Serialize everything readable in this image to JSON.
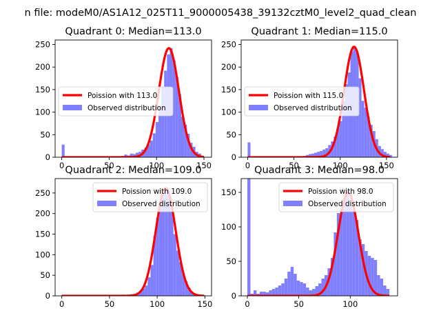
{
  "figure": {
    "suptitle": "n file: modeM0/AS1A12_025T11_9000005438_39132cztM0_level2_quad_clean"
  },
  "colors": {
    "hist": "#8080ff",
    "poisson": "#ff0000",
    "axes": "#000000"
  },
  "chart_data": [
    {
      "type": "bar",
      "title": "Quadrant 0: Median=113.0",
      "median": 113.0,
      "xlim": [
        -7,
        158
      ],
      "ylim": [
        0,
        260
      ],
      "xticks": [
        0,
        50,
        100,
        150
      ],
      "yticks": [
        0,
        50,
        100,
        150,
        200,
        250
      ],
      "legend_loc": "center-left",
      "legend": [
        "Poission with 113.0",
        "Observed distribution"
      ],
      "hist": {
        "bin_width": 3,
        "bins": [
          [
            0,
            28
          ],
          [
            3,
            2
          ],
          [
            6,
            2
          ],
          [
            9,
            2
          ],
          [
            12,
            2
          ],
          [
            15,
            2
          ],
          [
            18,
            2
          ],
          [
            21,
            2
          ],
          [
            24,
            2
          ],
          [
            27,
            2
          ],
          [
            30,
            2
          ],
          [
            33,
            2
          ],
          [
            36,
            2
          ],
          [
            39,
            2
          ],
          [
            42,
            2
          ],
          [
            45,
            2
          ],
          [
            48,
            2
          ],
          [
            51,
            2
          ],
          [
            54,
            2
          ],
          [
            57,
            2
          ],
          [
            60,
            2
          ],
          [
            63,
            3
          ],
          [
            66,
            6
          ],
          [
            69,
            4
          ],
          [
            72,
            8
          ],
          [
            75,
            7
          ],
          [
            78,
            10
          ],
          [
            81,
            12
          ],
          [
            84,
            17
          ],
          [
            87,
            21
          ],
          [
            90,
            28
          ],
          [
            93,
            37
          ],
          [
            96,
            53
          ],
          [
            99,
            78
          ],
          [
            102,
            110
          ],
          [
            105,
            155
          ],
          [
            108,
            192
          ],
          [
            111,
            228
          ],
          [
            114,
            242
          ],
          [
            117,
            215
          ],
          [
            120,
            178
          ],
          [
            123,
            140
          ],
          [
            126,
            90
          ],
          [
            129,
            72
          ],
          [
            132,
            52
          ],
          [
            135,
            32
          ],
          [
            138,
            23
          ],
          [
            141,
            12
          ],
          [
            144,
            8
          ],
          [
            147,
            3
          ]
        ]
      },
      "poisson": {
        "lambda": 113.0,
        "scale": 242
      }
    },
    {
      "type": "bar",
      "title": "Quadrant 1: Median=115.0",
      "median": 115.0,
      "xlim": [
        -7,
        162
      ],
      "ylim": [
        0,
        260
      ],
      "xticks": [
        0,
        50,
        100,
        150
      ],
      "yticks": [
        0,
        50,
        100,
        150,
        200,
        250
      ],
      "legend_loc": "center-left",
      "legend": [
        "Poission with 115.0",
        "Observed distribution"
      ],
      "hist": {
        "bin_width": 3,
        "bins": [
          [
            0,
            33
          ],
          [
            3,
            2
          ],
          [
            6,
            2
          ],
          [
            9,
            2
          ],
          [
            12,
            2
          ],
          [
            15,
            2
          ],
          [
            18,
            2
          ],
          [
            21,
            2
          ],
          [
            24,
            2
          ],
          [
            27,
            2
          ],
          [
            30,
            2
          ],
          [
            33,
            2
          ],
          [
            36,
            2
          ],
          [
            39,
            2
          ],
          [
            42,
            2
          ],
          [
            45,
            2
          ],
          [
            48,
            2
          ],
          [
            51,
            2
          ],
          [
            54,
            2
          ],
          [
            57,
            2
          ],
          [
            60,
            3
          ],
          [
            63,
            5
          ],
          [
            66,
            7
          ],
          [
            69,
            8
          ],
          [
            72,
            10
          ],
          [
            75,
            12
          ],
          [
            78,
            14
          ],
          [
            81,
            17
          ],
          [
            84,
            20
          ],
          [
            87,
            27
          ],
          [
            90,
            35
          ],
          [
            93,
            46
          ],
          [
            96,
            65
          ],
          [
            99,
            80
          ],
          [
            102,
            125
          ],
          [
            105,
            162
          ],
          [
            108,
            188
          ],
          [
            111,
            235
          ],
          [
            114,
            245
          ],
          [
            117,
            232
          ],
          [
            120,
            175
          ],
          [
            123,
            125
          ],
          [
            126,
            110
          ],
          [
            129,
            90
          ],
          [
            132,
            72
          ],
          [
            135,
            58
          ],
          [
            138,
            40
          ],
          [
            141,
            25
          ],
          [
            144,
            18
          ],
          [
            147,
            12
          ],
          [
            150,
            8
          ],
          [
            153,
            5
          ]
        ]
      },
      "poisson": {
        "lambda": 115.0,
        "scale": 245
      }
    },
    {
      "type": "bar",
      "title": "Quadrant 2: Median=109.0",
      "median": 109.0,
      "xlim": [
        -7,
        157
      ],
      "ylim": [
        0,
        285
      ],
      "xticks": [
        0,
        50,
        100,
        150
      ],
      "yticks": [
        0,
        50,
        100,
        150,
        200,
        250
      ],
      "legend_loc": "upper-right",
      "legend": [
        "Poission with 109.0",
        "Observed distribution"
      ],
      "hist": {
        "bin_width": 3,
        "bins": [
          [
            0,
            2
          ],
          [
            3,
            2
          ],
          [
            6,
            2
          ],
          [
            9,
            2
          ],
          [
            12,
            2
          ],
          [
            15,
            2
          ],
          [
            18,
            2
          ],
          [
            21,
            2
          ],
          [
            24,
            2
          ],
          [
            27,
            2
          ],
          [
            30,
            2
          ],
          [
            33,
            2
          ],
          [
            36,
            2
          ],
          [
            39,
            2
          ],
          [
            42,
            2
          ],
          [
            45,
            2
          ],
          [
            48,
            2
          ],
          [
            51,
            2
          ],
          [
            54,
            2
          ],
          [
            57,
            2
          ],
          [
            60,
            2
          ],
          [
            63,
            3
          ],
          [
            66,
            2
          ],
          [
            69,
            3
          ],
          [
            72,
            4
          ],
          [
            75,
            5
          ],
          [
            78,
            8
          ],
          [
            81,
            12
          ],
          [
            84,
            18
          ],
          [
            87,
            25
          ],
          [
            90,
            45
          ],
          [
            93,
            75
          ],
          [
            96,
            145
          ],
          [
            99,
            190
          ],
          [
            102,
            215
          ],
          [
            105,
            255
          ],
          [
            108,
            262
          ],
          [
            111,
            248
          ],
          [
            114,
            205
          ],
          [
            117,
            150
          ],
          [
            120,
            110
          ],
          [
            123,
            82
          ],
          [
            126,
            55
          ],
          [
            129,
            35
          ],
          [
            132,
            20
          ],
          [
            135,
            10
          ],
          [
            138,
            6
          ],
          [
            141,
            3
          ],
          [
            144,
            2
          ],
          [
            147,
            2
          ]
        ]
      },
      "poisson": {
        "lambda": 109.0,
        "scale": 262
      }
    },
    {
      "type": "bar",
      "title": "Quadrant 3: Median=98.0",
      "median": 98.0,
      "xlim": [
        -6,
        146
      ],
      "ylim": [
        0,
        170
      ],
      "xticks": [
        0,
        50,
        100
      ],
      "yticks": [
        0,
        50,
        100,
        150
      ],
      "legend_loc": "upper-right",
      "legend": [
        "Poission with 98.0",
        "Observed distribution"
      ],
      "hist": {
        "bin_width": 3,
        "bins": [
          [
            0,
            170
          ],
          [
            3,
            3
          ],
          [
            6,
            8
          ],
          [
            9,
            3
          ],
          [
            12,
            6
          ],
          [
            15,
            6
          ],
          [
            18,
            5
          ],
          [
            21,
            8
          ],
          [
            24,
            10
          ],
          [
            27,
            12
          ],
          [
            30,
            15
          ],
          [
            33,
            18
          ],
          [
            36,
            25
          ],
          [
            39,
            35
          ],
          [
            42,
            42
          ],
          [
            45,
            32
          ],
          [
            48,
            22
          ],
          [
            51,
            20
          ],
          [
            54,
            18
          ],
          [
            57,
            12
          ],
          [
            60,
            8
          ],
          [
            63,
            10
          ],
          [
            66,
            14
          ],
          [
            69,
            18
          ],
          [
            72,
            25
          ],
          [
            75,
            30
          ],
          [
            78,
            40
          ],
          [
            81,
            55
          ],
          [
            84,
            92
          ],
          [
            87,
            120
          ],
          [
            90,
            128
          ],
          [
            93,
            140
          ],
          [
            96,
            150
          ],
          [
            99,
            130
          ],
          [
            102,
            125
          ],
          [
            105,
            110
          ],
          [
            108,
            82
          ],
          [
            111,
            75
          ],
          [
            114,
            65
          ],
          [
            117,
            58
          ],
          [
            120,
            55
          ],
          [
            123,
            52
          ],
          [
            126,
            30
          ],
          [
            129,
            25
          ],
          [
            132,
            15
          ],
          [
            135,
            10
          ]
        ]
      },
      "poisson": {
        "lambda": 98.0,
        "scale": 150
      }
    }
  ]
}
